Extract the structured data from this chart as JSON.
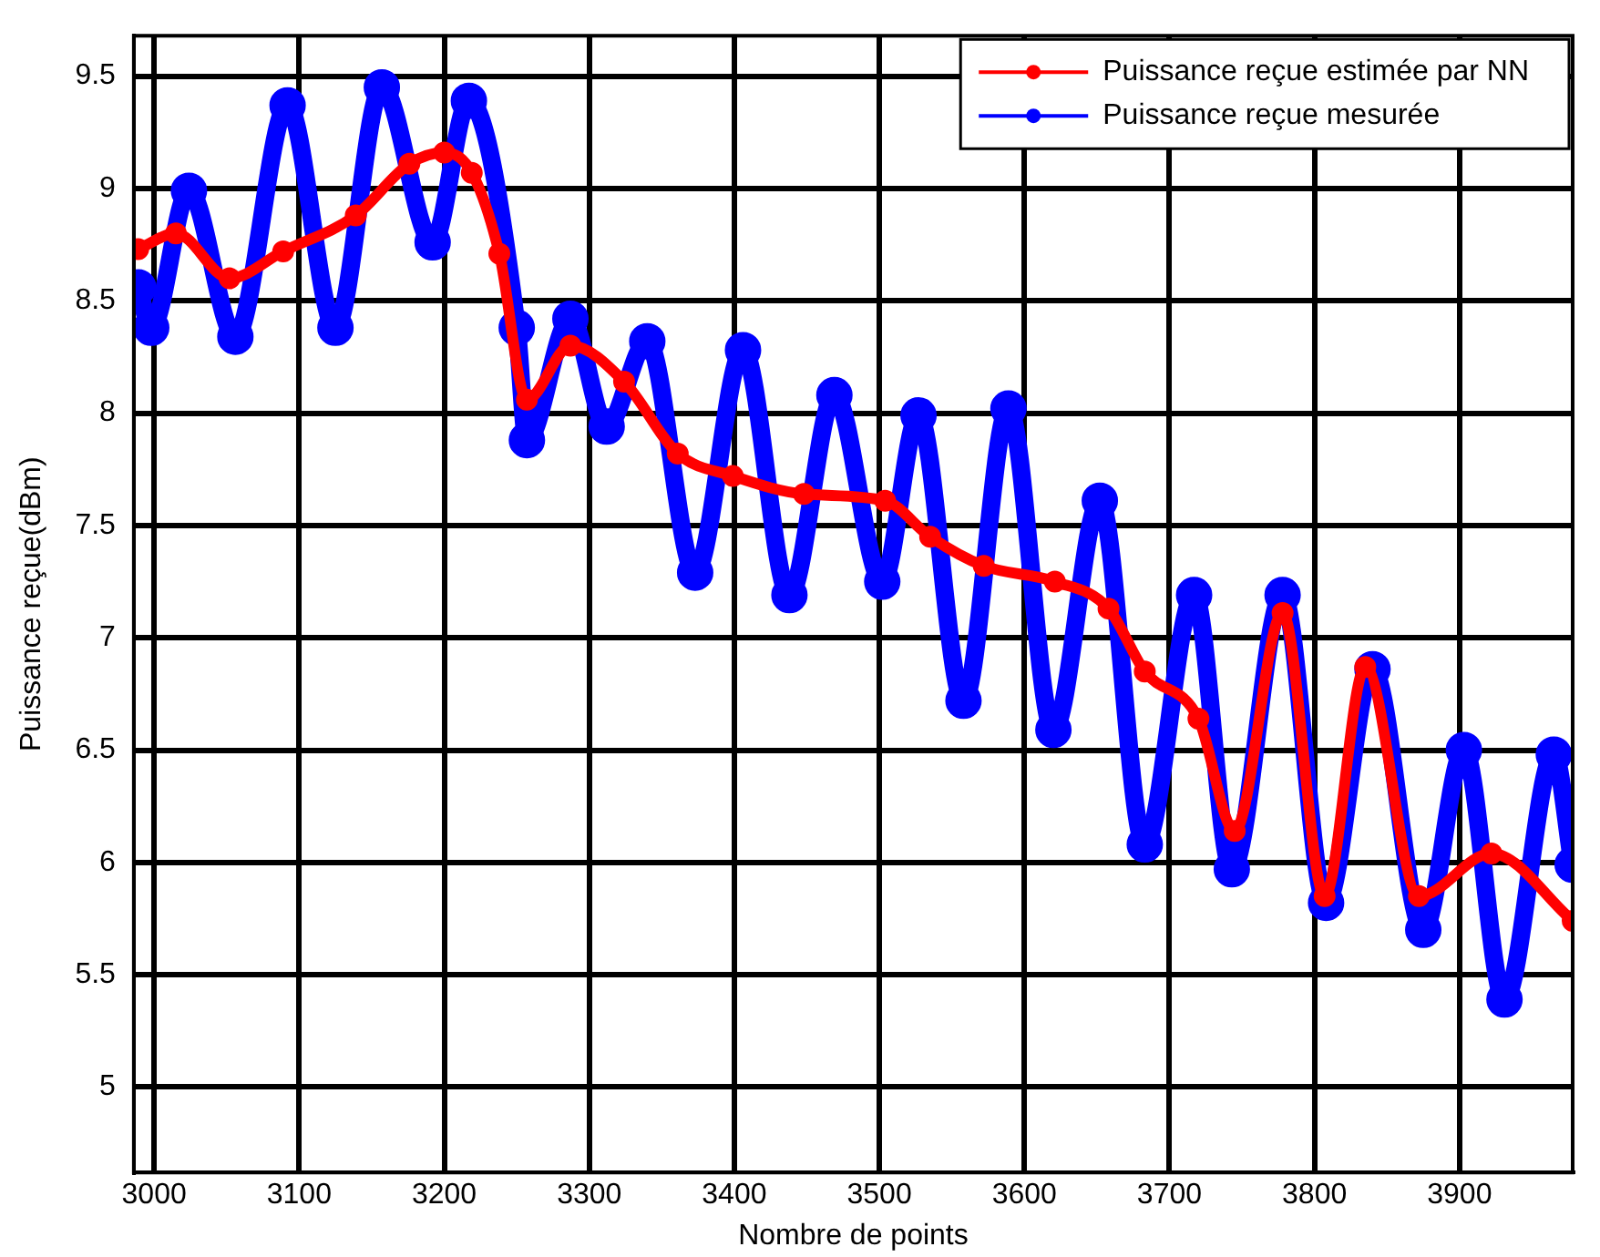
{
  "chart_data": {
    "type": "line",
    "xlabel": "Nombre de points",
    "ylabel": "Puissance reçue(dBm)",
    "xlim": [
      2986,
      3978
    ],
    "ylim": [
      4.62,
      9.68
    ],
    "xticks": [
      3000,
      3100,
      3200,
      3300,
      3400,
      3500,
      3600,
      3700,
      3800,
      3900
    ],
    "yticks": [
      5,
      5.5,
      6,
      6.5,
      7,
      7.5,
      8,
      8.5,
      9,
      9.5
    ],
    "grid": true,
    "legend": "top right",
    "marker": "circle",
    "line_style": "solid",
    "series": [
      {
        "name": "Puissance reçue estimée par NN",
        "color": "#ff0000",
        "x": [
          2989,
          3015,
          3052,
          3089,
          3139,
          3176,
          3200,
          3219,
          3238,
          3257,
          3287,
          3324,
          3361,
          3399,
          3448,
          3504,
          3535,
          3572,
          3621,
          3658,
          3683,
          3720,
          3745,
          3778,
          3807,
          3835,
          3872,
          3922,
          3978
        ],
        "values": [
          8.73,
          8.8,
          8.6,
          8.72,
          8.88,
          9.11,
          9.16,
          9.07,
          8.71,
          8.06,
          8.3,
          8.14,
          7.82,
          7.72,
          7.64,
          7.61,
          7.45,
          7.32,
          7.25,
          7.13,
          6.85,
          6.64,
          6.14,
          7.11,
          5.85,
          6.87,
          5.85,
          6.04,
          5.74
        ]
      },
      {
        "name": "Puissance reçue mesurée",
        "color": "#0000ff",
        "x": [
          2989,
          2998,
          3024,
          3056,
          3092,
          3125,
          3157,
          3192,
          3217,
          3250,
          3257,
          3287,
          3312,
          3340,
          3373,
          3406,
          3438,
          3469,
          3502,
          3527,
          3558,
          3589,
          3620,
          3652,
          3683,
          3717,
          3743,
          3778,
          3808,
          3840,
          3875,
          3903,
          3931,
          3965,
          3978
        ],
        "values": [
          8.56,
          8.38,
          8.99,
          8.34,
          9.37,
          8.38,
          9.45,
          8.76,
          9.39,
          8.38,
          7.88,
          8.42,
          7.94,
          8.32,
          7.29,
          8.28,
          7.19,
          8.08,
          7.25,
          7.99,
          6.72,
          8.02,
          6.59,
          7.61,
          6.08,
          7.19,
          5.97,
          7.19,
          5.82,
          6.86,
          5.7,
          6.5,
          5.39,
          6.48,
          5.99
        ]
      }
    ]
  }
}
